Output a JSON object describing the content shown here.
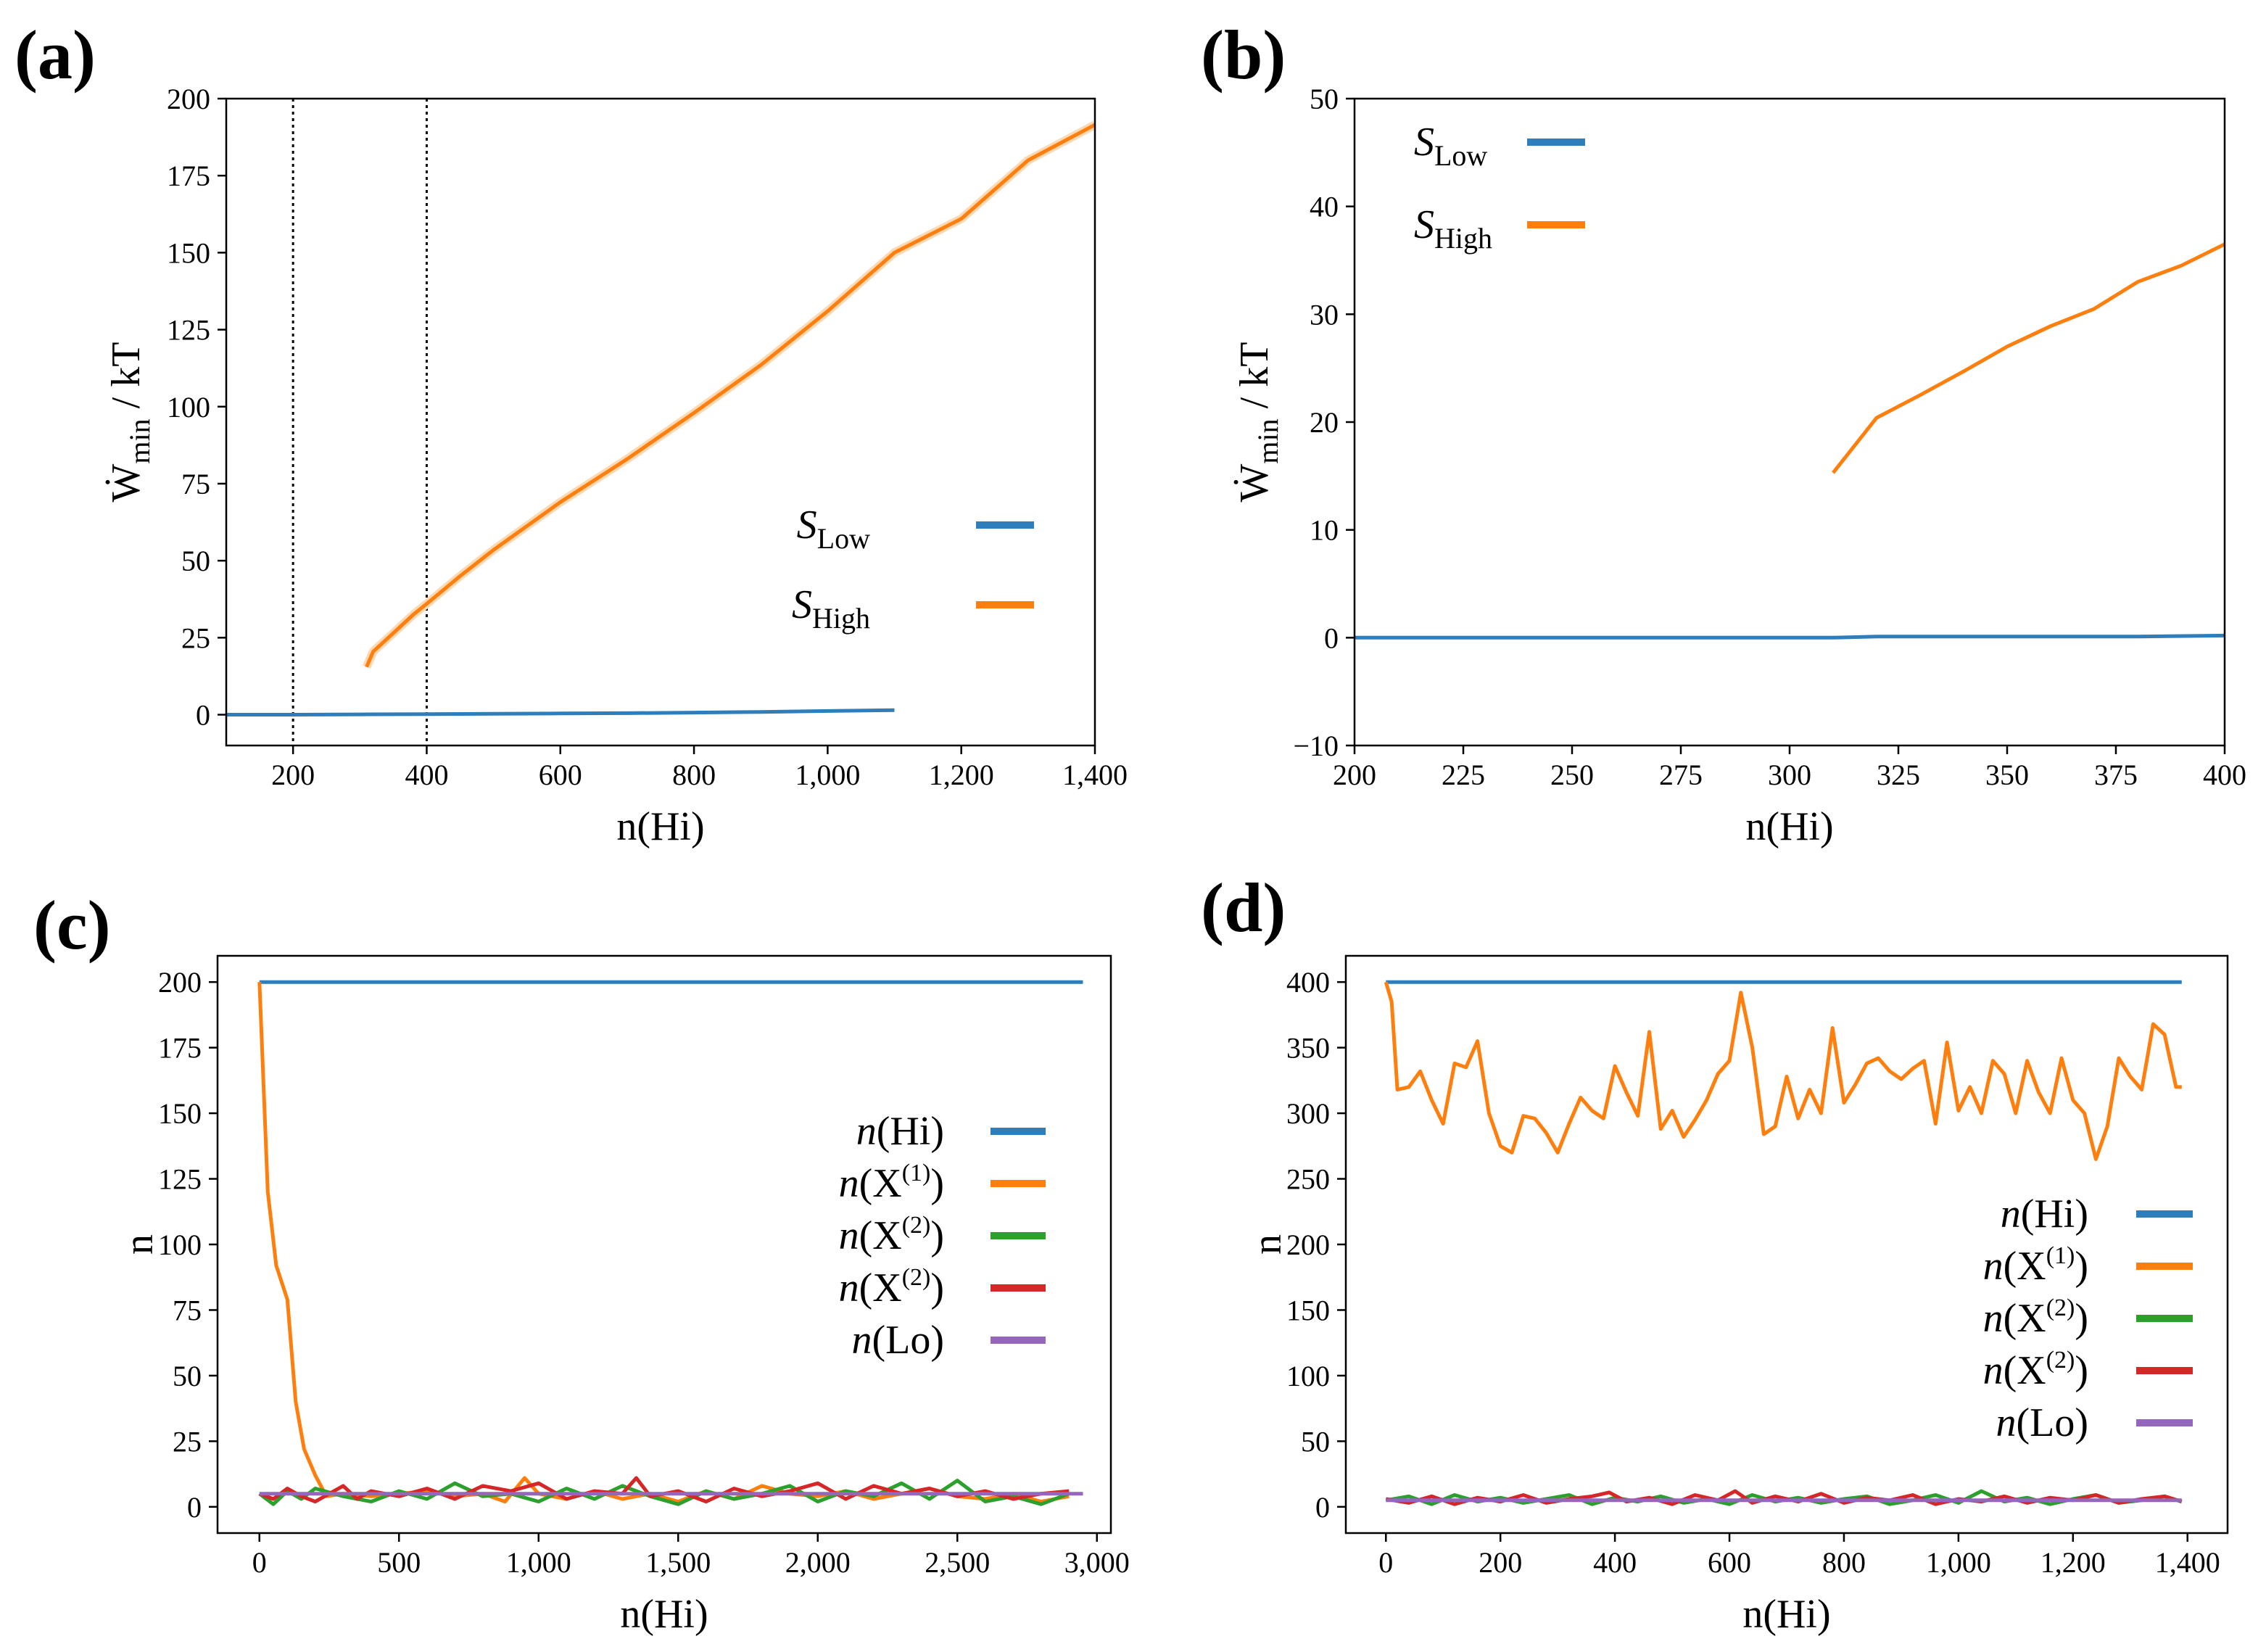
{
  "chart_data": [
    {
      "id": "a",
      "panel_label": "(a)",
      "type": "line",
      "xlabel": "n(Hi)",
      "ylabel": {
        "main": "Ẇ",
        "sub": "min",
        "rest": " / kT"
      },
      "xlim": [
        100,
        1400
      ],
      "ylim": [
        -10,
        200
      ],
      "xticks": [
        200,
        400,
        600,
        800,
        1000,
        1200,
        1400
      ],
      "xtick_labels": [
        "200",
        "400",
        "600",
        "800",
        "1,000",
        "1,200",
        "1,400"
      ],
      "yticks": [
        0,
        25,
        50,
        75,
        100,
        125,
        150,
        175,
        200
      ],
      "ytick_labels": [
        "0",
        "25",
        "50",
        "75",
        "100",
        "125",
        "150",
        "175",
        "200"
      ],
      "vlines": [
        200,
        400
      ],
      "legend_position": "lower-right",
      "series": [
        {
          "name": "S_Low",
          "legend": {
            "base": "S",
            "sub": "Low"
          },
          "color": "#2e7ebc",
          "x": [
            100,
            200,
            300,
            400,
            500,
            600,
            700,
            800,
            900,
            1000,
            1100
          ],
          "y": [
            0,
            0,
            0.1,
            0.2,
            0.3,
            0.4,
            0.5,
            0.7,
            0.9,
            1.2,
            1.5
          ]
        },
        {
          "name": "S_High",
          "legend": {
            "base": "S",
            "sub": "High"
          },
          "color": "#ff7f0e",
          "x": [
            310,
            320,
            340,
            360,
            380,
            400,
            450,
            500,
            600,
            700,
            800,
            900,
            1000,
            1100,
            1200,
            1300,
            1400
          ],
          "y": [
            15.5,
            20.5,
            24.5,
            28.5,
            32.5,
            36,
            45,
            53.5,
            69,
            83,
            98,
            113.5,
            131,
            150,
            161,
            180,
            191.5
          ]
        }
      ]
    },
    {
      "id": "b",
      "panel_label": "(b)",
      "type": "line",
      "xlabel": "n(Hi)",
      "ylabel": {
        "main": "Ẇ",
        "sub": "min",
        "rest": " / kT"
      },
      "xlim": [
        200,
        400
      ],
      "ylim": [
        -10,
        50
      ],
      "xticks": [
        200,
        225,
        250,
        275,
        300,
        325,
        350,
        375,
        400
      ],
      "xtick_labels": [
        "200",
        "225",
        "250",
        "275",
        "300",
        "325",
        "350",
        "375",
        "400"
      ],
      "yticks": [
        -10,
        0,
        10,
        20,
        30,
        40,
        50
      ],
      "ytick_labels": [
        "−10",
        "0",
        "10",
        "20",
        "30",
        "40",
        "50"
      ],
      "vlines": [],
      "legend_position": "upper-left",
      "series": [
        {
          "name": "S_Low",
          "legend": {
            "base": "S",
            "sub": "Low"
          },
          "color": "#2e7ebc",
          "x": [
            200,
            250,
            300,
            310,
            320,
            350,
            380,
            400
          ],
          "y": [
            0,
            0,
            0,
            0,
            0.1,
            0.1,
            0.1,
            0.2
          ]
        },
        {
          "name": "S_High",
          "legend": {
            "base": "S",
            "sub": "High"
          },
          "color": "#ff7f0e",
          "x": [
            310,
            320,
            330,
            340,
            350,
            360,
            370,
            380,
            390,
            400
          ],
          "y": [
            15.3,
            20.4,
            22.5,
            24.7,
            27,
            28.9,
            30.5,
            33,
            34.5,
            36.5
          ]
        }
      ]
    },
    {
      "id": "c",
      "panel_label": "(c)",
      "type": "line",
      "xlabel": "n(Hi)",
      "ylabel": {
        "main": "n",
        "sub": "",
        "rest": ""
      },
      "xlim": [
        -150,
        3050
      ],
      "ylim": [
        -10,
        210
      ],
      "xticks": [
        0,
        500,
        1000,
        1500,
        2000,
        2500,
        3000
      ],
      "xtick_labels": [
        "0",
        "500",
        "1,000",
        "1,500",
        "2,000",
        "2,500",
        "3,000"
      ],
      "yticks": [
        0,
        25,
        50,
        75,
        100,
        125,
        150,
        175,
        200
      ],
      "ytick_labels": [
        "0",
        "25",
        "50",
        "75",
        "100",
        "125",
        "150",
        "175",
        "200"
      ],
      "vlines": [],
      "legend_position": "right",
      "series": [
        {
          "name": "n(Hi)",
          "legend": {
            "italic": "n",
            "open": "(",
            "base": "Hi",
            "sup": "",
            "close": ")"
          },
          "color": "#2e7ebc",
          "x": [
            0,
            2950
          ],
          "y": [
            200,
            200
          ]
        },
        {
          "name": "n(X(1))",
          "legend": {
            "italic": "n",
            "open": "(",
            "base": "X",
            "sup": "(1)",
            "close": ")"
          },
          "color": "#ff7f0e",
          "x": [
            0,
            30,
            60,
            100,
            130,
            160,
            200,
            240,
            300,
            400,
            500,
            600,
            700,
            800,
            880,
            950,
            1000,
            1100,
            1200,
            1300,
            1400,
            1500,
            1600,
            1700,
            1800,
            1900,
            2000,
            2100,
            2200,
            2300,
            2400,
            2500,
            2600,
            2700,
            2800,
            2900
          ],
          "y": [
            200,
            120,
            92,
            79,
            40,
            22,
            12,
            4,
            5,
            4,
            5,
            6,
            4,
            5,
            2,
            11,
            5,
            3,
            6,
            3,
            5,
            2,
            6,
            3,
            8,
            5,
            4,
            6,
            3,
            5,
            7,
            4,
            3,
            5,
            2,
            4
          ]
        },
        {
          "name": "n(X(2))",
          "legend": {
            "italic": "n",
            "open": "(",
            "base": "X",
            "sup": "(2)",
            "close": ")"
          },
          "color": "#2ca02c",
          "x": [
            0,
            50,
            100,
            150,
            200,
            300,
            400,
            500,
            600,
            700,
            800,
            900,
            1000,
            1100,
            1200,
            1300,
            1400,
            1500,
            1600,
            1700,
            1800,
            1900,
            2000,
            2100,
            2200,
            2300,
            2400,
            2500,
            2600,
            2700,
            2800,
            2900
          ],
          "y": [
            5,
            1,
            6,
            3,
            7,
            4,
            2,
            6,
            3,
            9,
            4,
            5,
            2,
            7,
            3,
            8,
            4,
            1,
            6,
            3,
            5,
            8,
            2,
            6,
            4,
            9,
            3,
            10,
            2,
            4,
            1,
            5
          ]
        },
        {
          "name": "n(X(2)) (red)",
          "legend": {
            "italic": "n",
            "open": "(",
            "base": "X",
            "sup": "(2)",
            "close": ")"
          },
          "color": "#d62728",
          "x": [
            0,
            50,
            100,
            150,
            200,
            300,
            350,
            400,
            500,
            600,
            700,
            800,
            900,
            1000,
            1100,
            1200,
            1300,
            1350,
            1400,
            1500,
            1600,
            1700,
            1800,
            1900,
            2000,
            2100,
            2200,
            2300,
            2400,
            2500,
            2600,
            2700,
            2800,
            2900
          ],
          "y": [
            5,
            3,
            7,
            4,
            2,
            8,
            3,
            6,
            4,
            7,
            3,
            8,
            6,
            9,
            3,
            6,
            5,
            11,
            4,
            6,
            2,
            7,
            4,
            6,
            9,
            3,
            8,
            5,
            7,
            4,
            6,
            3,
            5,
            6
          ]
        },
        {
          "name": "n(Lo)",
          "legend": {
            "italic": "n",
            "open": "(",
            "base": "Lo",
            "sup": "",
            "close": ")"
          },
          "color": "#9467bd",
          "x": [
            0,
            2950
          ],
          "y": [
            5,
            5
          ]
        }
      ]
    },
    {
      "id": "d",
      "panel_label": "(d)",
      "type": "line",
      "xlabel": "n(Hi)",
      "ylabel": {
        "main": "n",
        "sub": "",
        "rest": ""
      },
      "xlim": [
        -70,
        1470
      ],
      "ylim": [
        -20,
        420
      ],
      "xticks": [
        0,
        200,
        400,
        600,
        800,
        1000,
        1200,
        1400
      ],
      "xtick_labels": [
        "0",
        "200",
        "400",
        "600",
        "800",
        "1,000",
        "1,200",
        "1,400"
      ],
      "yticks": [
        0,
        50,
        100,
        150,
        200,
        250,
        300,
        350,
        400
      ],
      "ytick_labels": [
        "0",
        "50",
        "100",
        "150",
        "200",
        "250",
        "300",
        "350",
        "400"
      ],
      "vlines": [],
      "legend_position": "right",
      "series": [
        {
          "name": "n(Hi)",
          "legend": {
            "italic": "n",
            "open": "(",
            "base": "Hi",
            "sup": "",
            "close": ")"
          },
          "color": "#2e7ebc",
          "x": [
            0,
            1390
          ],
          "y": [
            400,
            400
          ]
        },
        {
          "name": "n(X(1))",
          "legend": {
            "italic": "n",
            "open": "(",
            "base": "X",
            "sup": "(1)",
            "close": ")"
          },
          "color": "#ff7f0e",
          "x": [
            0,
            10,
            20,
            40,
            60,
            80,
            100,
            120,
            140,
            160,
            180,
            200,
            220,
            240,
            260,
            280,
            300,
            320,
            340,
            360,
            380,
            400,
            420,
            440,
            460,
            480,
            500,
            520,
            540,
            560,
            580,
            600,
            620,
            640,
            660,
            680,
            700,
            720,
            740,
            760,
            780,
            800,
            820,
            840,
            860,
            880,
            900,
            920,
            940,
            960,
            980,
            1000,
            1020,
            1040,
            1060,
            1080,
            1100,
            1120,
            1140,
            1160,
            1180,
            1200,
            1220,
            1240,
            1260,
            1280,
            1300,
            1320,
            1340,
            1360,
            1380,
            1390
          ],
          "y": [
            400,
            385,
            318,
            320,
            332,
            310,
            292,
            338,
            335,
            355,
            300,
            275,
            270,
            298,
            296,
            285,
            270,
            292,
            312,
            302,
            296,
            336,
            316,
            298,
            362,
            288,
            302,
            282,
            295,
            310,
            330,
            340,
            392,
            350,
            284,
            290,
            328,
            296,
            318,
            300,
            365,
            308,
            322,
            338,
            342,
            332,
            326,
            334,
            340,
            292,
            354,
            302,
            320,
            300,
            340,
            330,
            300,
            340,
            316,
            300,
            342,
            310,
            300,
            265,
            290,
            342,
            328,
            318,
            368,
            360,
            320,
            320
          ]
        },
        {
          "name": "n(X(2))",
          "legend": {
            "italic": "n",
            "open": "(",
            "base": "X",
            "sup": "(2)",
            "close": ")"
          },
          "color": "#2ca02c",
          "x": [
            0,
            40,
            80,
            120,
            160,
            200,
            240,
            280,
            320,
            360,
            400,
            440,
            480,
            520,
            560,
            600,
            640,
            680,
            720,
            760,
            800,
            840,
            880,
            920,
            960,
            1000,
            1040,
            1080,
            1120,
            1160,
            1200,
            1240,
            1280,
            1320,
            1360,
            1390
          ],
          "y": [
            5,
            8,
            2,
            9,
            4,
            7,
            3,
            6,
            9,
            2,
            7,
            4,
            8,
            3,
            6,
            2,
            9,
            4,
            7,
            3,
            6,
            8,
            2,
            5,
            9,
            3,
            12,
            4,
            7,
            2,
            6,
            9,
            3,
            5,
            8,
            4
          ]
        },
        {
          "name": "n(X(2)) (red)",
          "legend": {
            "italic": "n",
            "open": "(",
            "base": "X",
            "sup": "(2)",
            "close": ")"
          },
          "color": "#d62728",
          "x": [
            0,
            40,
            80,
            120,
            160,
            200,
            240,
            280,
            320,
            360,
            390,
            420,
            460,
            500,
            540,
            580,
            610,
            640,
            680,
            720,
            760,
            800,
            840,
            880,
            920,
            960,
            1000,
            1040,
            1080,
            1120,
            1160,
            1200,
            1240,
            1280,
            1320,
            1360,
            1390
          ],
          "y": [
            6,
            3,
            8,
            2,
            7,
            4,
            9,
            3,
            6,
            8,
            11,
            4,
            7,
            2,
            9,
            5,
            12,
            3,
            8,
            4,
            10,
            3,
            7,
            5,
            9,
            2,
            6,
            4,
            8,
            3,
            7,
            5,
            9,
            3,
            6,
            8,
            4
          ]
        },
        {
          "name": "n(Lo)",
          "legend": {
            "italic": "n",
            "open": "(",
            "base": "Lo",
            "sup": "",
            "close": ")"
          },
          "color": "#9467bd",
          "x": [
            0,
            1390
          ],
          "y": [
            5,
            5
          ]
        }
      ]
    }
  ]
}
